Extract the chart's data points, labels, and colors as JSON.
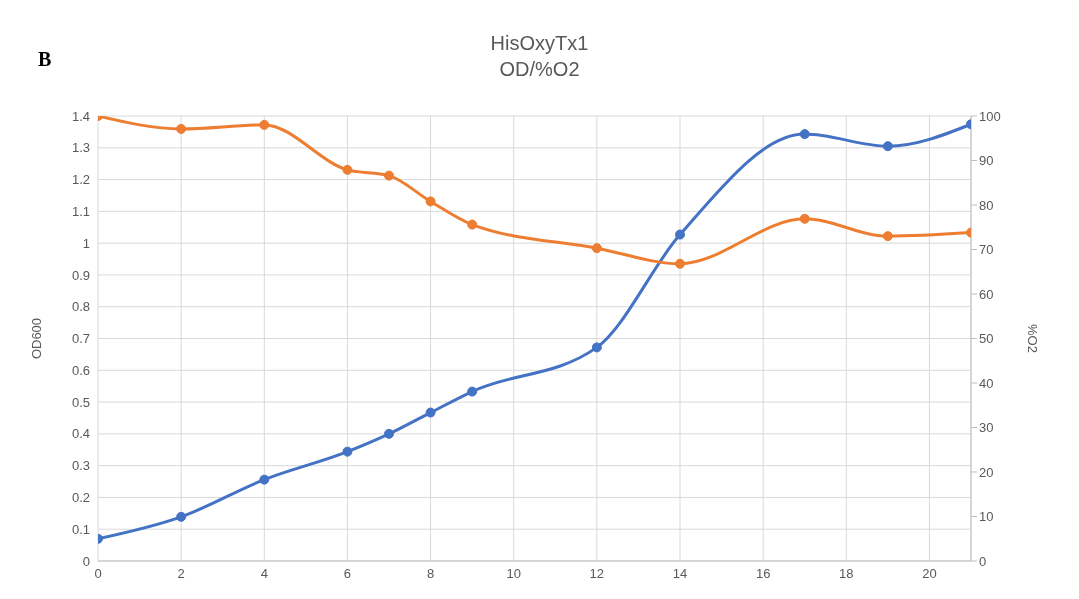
{
  "chart_data": {
    "type": "line",
    "title": "HisOxyTx1",
    "subtitle": "OD/%O2",
    "ylabel": "OD600",
    "y2label": "%O2",
    "annotations": [
      "B"
    ],
    "x": [
      0,
      2,
      4,
      6,
      7,
      8,
      9,
      12,
      14,
      17,
      19,
      21
    ],
    "series": [
      {
        "color": "#4472c4",
        "values": [
          0.07,
          0.139,
          0.256,
          0.344,
          0.4,
          0.467,
          0.533,
          0.672,
          1.027,
          1.343,
          1.305,
          1.374
        ]
      },
      {
        "color": "#ed7d31",
        "axis": "y2",
        "values": [
          100,
          97.1,
          98.0,
          87.9,
          86.6,
          80.8,
          75.6,
          70.3,
          66.8,
          76.9,
          73.0,
          73.8
        ]
      }
    ],
    "xlim": [
      0,
      21
    ],
    "xticks": [
      0,
      2,
      4,
      6,
      8,
      10,
      12,
      14,
      16,
      18,
      20
    ],
    "ylim": [
      0,
      1.4
    ],
    "yticks": [
      0,
      0.1,
      0.2,
      0.3,
      0.4,
      0.5,
      0.6,
      0.7,
      0.8,
      0.9,
      1,
      1.1,
      1.2,
      1.3,
      1.4
    ],
    "y2lim": [
      0,
      100
    ],
    "y2ticks": [
      0,
      10,
      20,
      30,
      40,
      50,
      60,
      70,
      80,
      90,
      100
    ],
    "grid": true,
    "marker": "circle",
    "line_style": "solid"
  }
}
